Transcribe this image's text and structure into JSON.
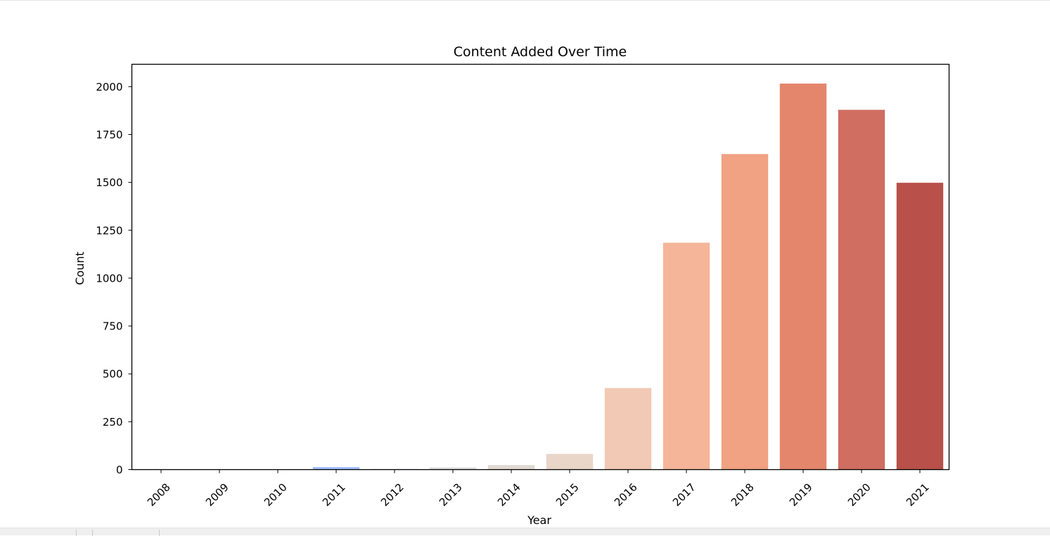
{
  "chart_data": {
    "type": "bar",
    "title": "Content Added Over Time",
    "xlabel": "Year",
    "ylabel": "Count",
    "categories": [
      "2008",
      "2009",
      "2010",
      "2011",
      "2012",
      "2013",
      "2014",
      "2015",
      "2016",
      "2017",
      "2018",
      "2019",
      "2020",
      "2021"
    ],
    "values": [
      2,
      2,
      1,
      13,
      3,
      11,
      24,
      82,
      426,
      1185,
      1648,
      2016,
      1879,
      1498
    ],
    "colors": [
      "#3b4cc0",
      "#5b7ae5",
      "#7b9ff9",
      "#9ebeff",
      "#c0d4f5",
      "#dddcdc",
      "#e2d9d3",
      "#ead5c9",
      "#f2c9b4",
      "#f5b599",
      "#f0a283",
      "#e4866b",
      "#cf6e61",
      "#b9504a"
    ],
    "yticks": [
      0,
      250,
      500,
      750,
      1000,
      1250,
      1500,
      1750,
      2000
    ],
    "ylim": [
      0,
      2116.8
    ],
    "grid": false,
    "legend": false
  }
}
